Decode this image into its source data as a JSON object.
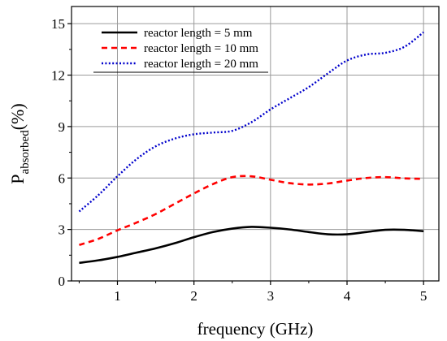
{
  "chart_data": {
    "type": "line",
    "title": "",
    "xlabel": "frequency (GHz)",
    "ylabel": {
      "main": "P",
      "subscript": "absorbed",
      "suffix": "(%)"
    },
    "xlim": [
      0.4,
      5.2
    ],
    "ylim": [
      0,
      16
    ],
    "xticks": [
      1,
      2,
      3,
      4,
      5
    ],
    "yticks": [
      0,
      3,
      6,
      9,
      12,
      15
    ],
    "xtick_labels": [
      "1",
      "2",
      "3",
      "4",
      "5"
    ],
    "ytick_labels": [
      "0",
      "3",
      "6",
      "9",
      "12",
      "15"
    ],
    "grid": true,
    "legend_position": "top-left",
    "series": [
      {
        "name": "reactor length = 5 mm",
        "color": "#000000",
        "style": "solid",
        "x": [
          0.5,
          0.75,
          1.0,
          1.25,
          1.5,
          1.75,
          2.0,
          2.25,
          2.5,
          2.75,
          3.0,
          3.25,
          3.5,
          3.75,
          4.0,
          4.25,
          4.5,
          4.75,
          5.0
        ],
        "y": [
          1.05,
          1.2,
          1.4,
          1.65,
          1.9,
          2.2,
          2.55,
          2.85,
          3.05,
          3.15,
          3.1,
          3.0,
          2.85,
          2.72,
          2.72,
          2.85,
          2.98,
          2.98,
          2.9
        ]
      },
      {
        "name": "reactor length = 10 mm",
        "color": "#ff0000",
        "style": "dashed",
        "x": [
          0.5,
          0.75,
          1.0,
          1.25,
          1.5,
          1.75,
          2.0,
          2.25,
          2.5,
          2.75,
          3.0,
          3.25,
          3.5,
          3.75,
          4.0,
          4.25,
          4.5,
          4.75,
          5.0
        ],
        "y": [
          2.1,
          2.45,
          2.95,
          3.4,
          3.9,
          4.5,
          5.1,
          5.65,
          6.05,
          6.1,
          5.9,
          5.7,
          5.62,
          5.68,
          5.85,
          6.0,
          6.05,
          5.98,
          5.95
        ]
      },
      {
        "name": "reactor length = 20 mm",
        "color": "#0000cc",
        "style": "dotted",
        "x": [
          0.5,
          0.75,
          1.0,
          1.25,
          1.5,
          1.75,
          2.0,
          2.25,
          2.5,
          2.75,
          3.0,
          3.25,
          3.5,
          3.75,
          4.0,
          4.25,
          4.5,
          4.75,
          5.0
        ],
        "y": [
          4.05,
          5.0,
          6.1,
          7.1,
          7.85,
          8.3,
          8.55,
          8.65,
          8.75,
          9.25,
          10.0,
          10.65,
          11.3,
          12.1,
          12.85,
          13.2,
          13.3,
          13.65,
          14.5
        ]
      }
    ]
  }
}
